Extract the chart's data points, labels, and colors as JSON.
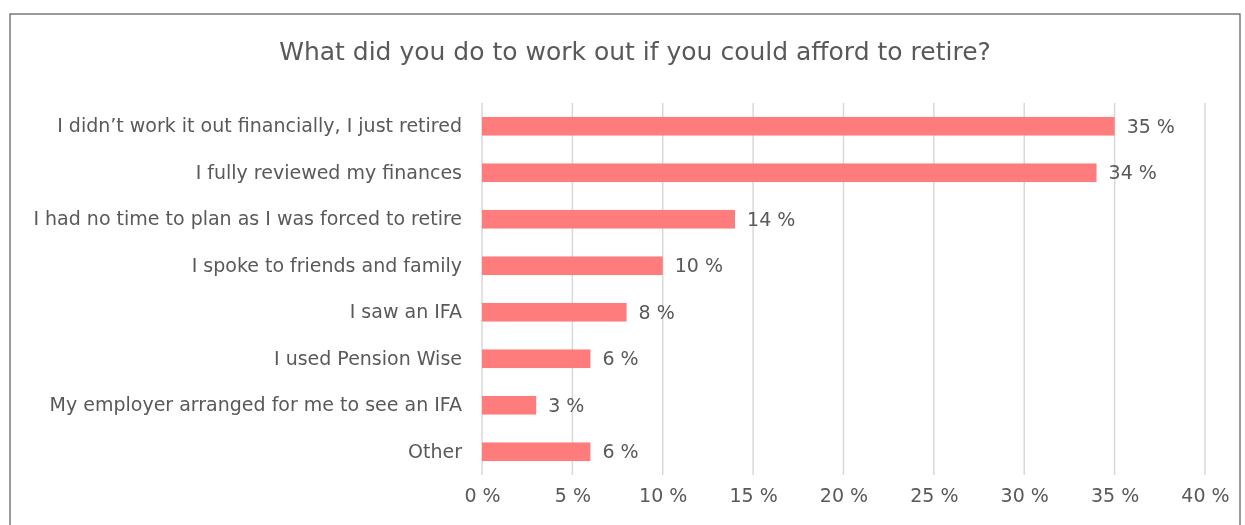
{
  "chart_data": {
    "type": "bar",
    "orientation": "horizontal",
    "title": "What did you do to work out if you could afford to retire?",
    "categories": [
      "I didn’t work it out financially, I just retired",
      "I fully reviewed my finances",
      "I had no time to plan as I was forced to retire",
      "I spoke to friends and family",
      "I saw an IFA",
      "I used Pension Wise",
      "My employer arranged for me to see an IFA",
      "Other"
    ],
    "values": [
      35,
      34,
      14,
      10,
      8,
      6,
      3,
      6
    ],
    "value_labels": [
      "35 %",
      "34 %",
      "14 %",
      "10 %",
      "8 %",
      "6 %",
      "3 %",
      "6 %"
    ],
    "color": "#ff7c7c",
    "xlim": [
      0,
      40
    ],
    "xticks": [
      {
        "value": 0,
        "label": "0 %"
      },
      {
        "value": 5,
        "label": "5 %"
      },
      {
        "value": 10,
        "label": "10 %"
      },
      {
        "value": 15,
        "label": "15 %"
      },
      {
        "value": 20,
        "label": "20 %"
      },
      {
        "value": 25,
        "label": "25 %"
      },
      {
        "value": 30,
        "label": "30 %"
      },
      {
        "value": 35,
        "label": "35 %"
      },
      {
        "value": 40,
        "label": "40 %"
      }
    ],
    "grid": "x"
  }
}
